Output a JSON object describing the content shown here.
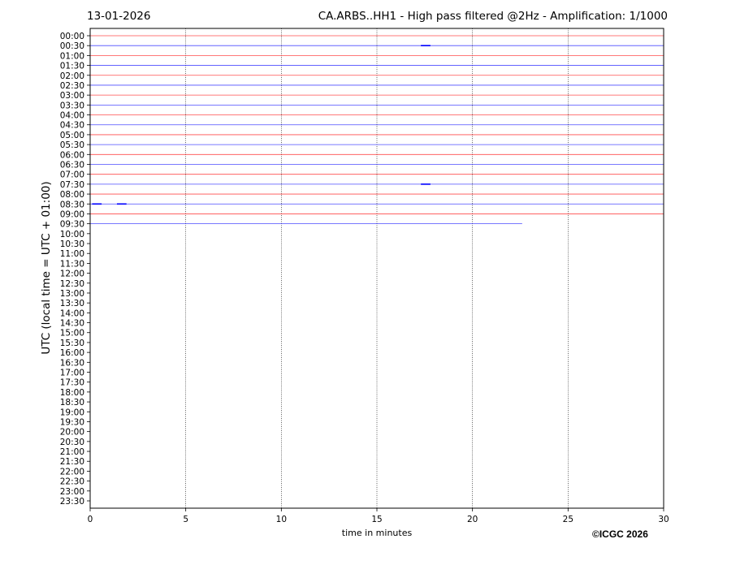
{
  "header": {
    "date": "13-01-2026",
    "title": "CA.ARBS..HH1 - High pass filtered @2Hz - Amplification: 1/1000"
  },
  "footer": {
    "copyright": "©ICGC 2026"
  },
  "chart_data": {
    "type": "line",
    "subtype": "helicorder",
    "xlabel": "time in minutes",
    "ylabel": "UTC (local time = UTC + 01:00)",
    "xlim": [
      0,
      30
    ],
    "xticks": [
      0,
      5,
      10,
      15,
      20,
      25,
      30
    ],
    "grid": "vertical dotted at x ticks",
    "colors": [
      "#ff0000",
      "#0000ff"
    ],
    "row_labels": [
      "00:00",
      "00:30",
      "01:00",
      "01:30",
      "02:00",
      "02:30",
      "03:00",
      "03:30",
      "04:00",
      "04:30",
      "05:00",
      "05:30",
      "06:00",
      "06:30",
      "07:00",
      "07:30",
      "08:00",
      "08:30",
      "09:00",
      "09:30",
      "10:00",
      "10:30",
      "11:00",
      "11:30",
      "12:00",
      "12:30",
      "13:00",
      "13:30",
      "14:00",
      "14:30",
      "15:00",
      "15:30",
      "16:00",
      "16:30",
      "17:00",
      "17:30",
      "18:00",
      "18:30",
      "19:00",
      "19:30",
      "20:00",
      "20:30",
      "21:00",
      "21:30",
      "22:00",
      "22:30",
      "23:00",
      "23:30"
    ],
    "traces": [
      {
        "row": "00:00",
        "end_minute": 30,
        "events": []
      },
      {
        "row": "00:30",
        "end_minute": 30,
        "events": [
          17.3
        ]
      },
      {
        "row": "01:00",
        "end_minute": 30,
        "events": []
      },
      {
        "row": "01:30",
        "end_minute": 30,
        "events": []
      },
      {
        "row": "02:00",
        "end_minute": 30,
        "events": []
      },
      {
        "row": "02:30",
        "end_minute": 30,
        "events": []
      },
      {
        "row": "03:00",
        "end_minute": 30,
        "events": []
      },
      {
        "row": "03:30",
        "end_minute": 30,
        "events": []
      },
      {
        "row": "04:00",
        "end_minute": 30,
        "events": []
      },
      {
        "row": "04:30",
        "end_minute": 30,
        "events": []
      },
      {
        "row": "05:00",
        "end_minute": 30,
        "events": []
      },
      {
        "row": "05:30",
        "end_minute": 30,
        "events": []
      },
      {
        "row": "06:00",
        "end_minute": 30,
        "events": []
      },
      {
        "row": "06:30",
        "end_minute": 30,
        "events": []
      },
      {
        "row": "07:00",
        "end_minute": 30,
        "events": []
      },
      {
        "row": "07:30",
        "end_minute": 30,
        "events": [
          17.3
        ]
      },
      {
        "row": "08:00",
        "end_minute": 30,
        "events": []
      },
      {
        "row": "08:30",
        "end_minute": 30,
        "events": [
          0.1,
          1.4
        ]
      },
      {
        "row": "09:00",
        "end_minute": 30,
        "events": []
      },
      {
        "row": "09:30",
        "end_minute": 22.6,
        "events": []
      }
    ]
  }
}
